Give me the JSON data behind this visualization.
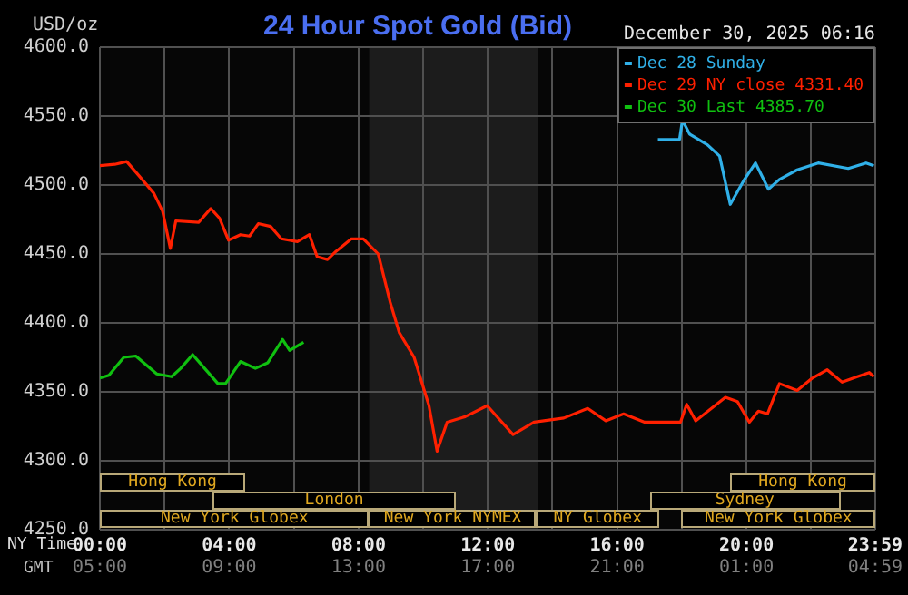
{
  "chart_data": {
    "type": "line",
    "title": "24 Hour Spot Gold (Bid)",
    "subtitle": "December 30, 2025 06:16",
    "ylabel": "USD/oz",
    "xlabel": "NY Time",
    "x2label": "GMT",
    "xlim": [
      0,
      23.983
    ],
    "xticks": [
      {
        "value": 0,
        "label": "00:00"
      },
      {
        "value": 2,
        "label": null
      },
      {
        "value": 4,
        "label": "04:00"
      },
      {
        "value": 6,
        "label": null
      },
      {
        "value": 8,
        "label": "08:00"
      },
      {
        "value": 10,
        "label": null
      },
      {
        "value": 12,
        "label": "12:00"
      },
      {
        "value": 14,
        "label": null
      },
      {
        "value": 16,
        "label": "16:00"
      },
      {
        "value": 18,
        "label": null
      },
      {
        "value": 20,
        "label": "20:00"
      },
      {
        "value": 22,
        "label": null
      },
      {
        "value": 23.983,
        "label": "23:59"
      }
    ],
    "x2lim": [
      "2025-12-29T05:00",
      "2025-12-30T04:59"
    ],
    "x2ticks": [
      {
        "value": "2025-12-29T05:00",
        "label": "05:00"
      },
      {
        "value": "2025-12-29T09:00",
        "label": "09:00"
      },
      {
        "value": "2025-12-29T13:00",
        "label": "13:00"
      },
      {
        "value": "2025-12-29T17:00",
        "label": "17:00"
      },
      {
        "value": "2025-12-29T21:00",
        "label": "21:00"
      },
      {
        "value": "2025-12-30T01:00",
        "label": "01:00"
      },
      {
        "value": "2025-12-30T04:59",
        "label": "04:59"
      }
    ],
    "annotations": [
      "New York Globex",
      "New York NYMEX",
      "NY Globex",
      "New York Globex",
      "London",
      "Sydney",
      "Hong Kong",
      "Hong Kong"
    ],
    "ylim": [
      4250,
      4600
    ],
    "yticks": [
      {
        "value": 4250,
        "label": "4250.0"
      },
      {
        "value": 4300,
        "label": "4300.0"
      },
      {
        "value": 4350,
        "label": "4350.0"
      },
      {
        "value": 4400,
        "label": "4400.0"
      },
      {
        "value": 4450,
        "label": "4450.0"
      },
      {
        "value": 4500,
        "label": "4500.0"
      },
      {
        "value": 4550,
        "label": "4550.0"
      },
      {
        "value": 4600,
        "label": "4600.0"
      }
    ],
    "grid": true,
    "legend": "top right",
    "marker": "none",
    "line_style": "solid",
    "series": [
      {
        "name": "Dec 28 Sunday",
        "color": "#30b0e8",
        "x": [
          17.26,
          17.93,
          18.02,
          18.24,
          18.8,
          19.17,
          19.5,
          19.91,
          20.28,
          20.68,
          21.02,
          21.57,
          22.22,
          23.15,
          23.7,
          23.94
        ],
        "values": [
          4533,
          4533,
          4547,
          4537,
          4529,
          4521,
          4486,
          4503,
          4516,
          4497,
          4504,
          4511,
          4516,
          4512,
          4516,
          4514
        ]
      },
      {
        "name": "Dec 29 NY close 4331.40",
        "color": "#ff2000",
        "x": [
          0,
          0.46,
          0.83,
          1.2,
          1.67,
          1.94,
          2.18,
          2.35,
          3.06,
          3.43,
          3.7,
          3.98,
          4.35,
          4.63,
          4.9,
          5.28,
          5.61,
          6.11,
          6.48,
          6.72,
          7.04,
          7.31,
          7.78,
          8.15,
          8.61,
          8.98,
          9.26,
          9.72,
          10.18,
          10.43,
          10.74,
          11.3,
          11.98,
          12.78,
          13.43,
          14.35,
          15.09,
          15.65,
          16.2,
          16.85,
          17.96,
          18.15,
          18.43,
          19.35,
          19.72,
          20.09,
          20.37,
          20.65,
          21.02,
          21.57,
          22.04,
          22.5,
          22.96,
          23.43,
          23.8,
          23.94
        ],
        "values": [
          4514,
          4515,
          4517,
          4507,
          4494,
          4481,
          4454,
          4474,
          4473,
          4483,
          4476,
          4460,
          4464,
          4463,
          4472,
          4470,
          4461,
          4459,
          4464,
          4448,
          4446,
          4452,
          4461,
          4461,
          4450,
          4415,
          4393,
          4375,
          4340,
          4307,
          4328,
          4332,
          4340,
          4319,
          4328,
          4331,
          4338,
          4329,
          4334,
          4328,
          4328,
          4341,
          4329,
          4346,
          4343,
          4328,
          4336,
          4334,
          4356,
          4351,
          4360,
          4366,
          4357,
          4361,
          4364,
          4361
        ]
      },
      {
        "name": "Dec 30 Last 4385.70",
        "color": "#10c010",
        "x": [
          0,
          0.28,
          0.74,
          1.11,
          1.76,
          2.22,
          2.5,
          2.87,
          3.24,
          3.65,
          3.89,
          4.35,
          4.81,
          5.19,
          5.65,
          5.87,
          6.3
        ],
        "values": [
          4360,
          4362,
          4375,
          4376,
          4363,
          4361,
          4367,
          4377,
          4367,
          4356,
          4356,
          4372,
          4367,
          4371,
          4388,
          4380,
          4386
        ]
      }
    ],
    "bands": [
      {
        "axis": "x",
        "from": 8.33,
        "to": 13.56,
        "color": "#1c1c1c"
      }
    ]
  }
}
